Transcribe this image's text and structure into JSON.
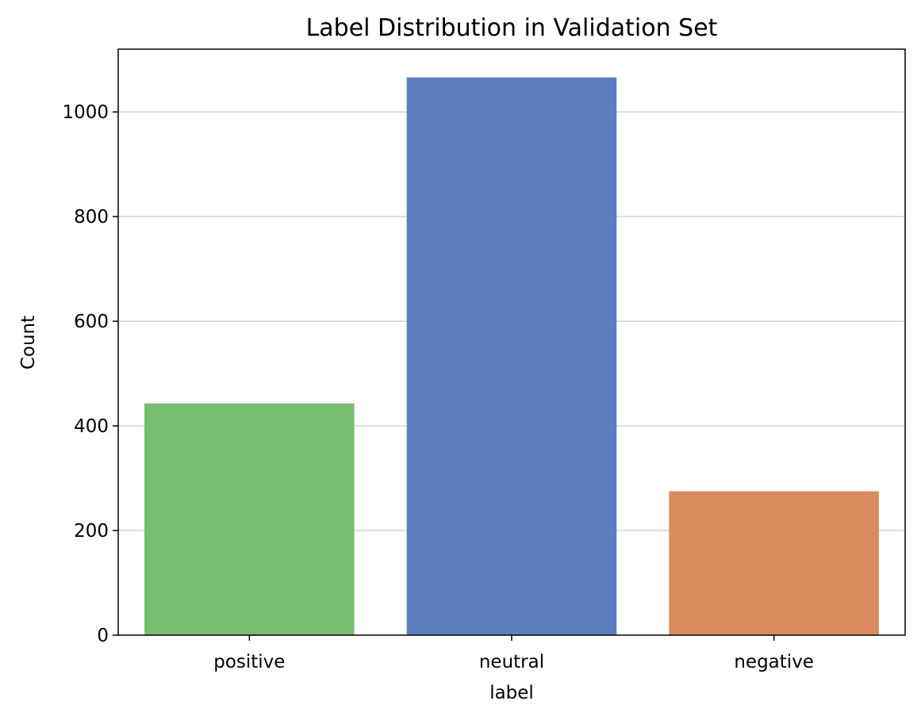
{
  "chart_data": {
    "type": "bar",
    "title": "Label Distribution in Validation Set",
    "xlabel": "label",
    "ylabel": "Count",
    "categories": [
      "positive",
      "neutral",
      "negative"
    ],
    "values": [
      443,
      1066,
      275
    ],
    "colors": [
      "#77be6f",
      "#5b7ebf",
      "#d98b5f"
    ],
    "ylim": [
      0,
      1120
    ],
    "yticks": [
      0,
      200,
      400,
      600,
      800,
      1000
    ],
    "grid": "horizontal"
  }
}
